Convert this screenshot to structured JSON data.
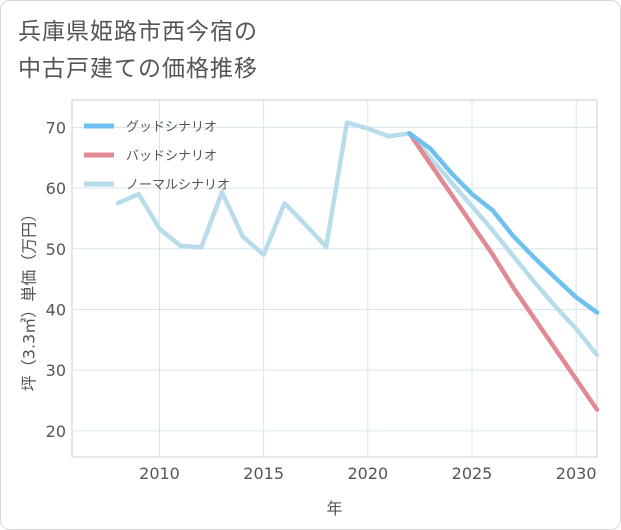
{
  "title": {
    "line1": "兵庫県姫路市西今宿の",
    "line2": "中古戸建ての価格推移"
  },
  "chart_data": {
    "type": "line",
    "xlabel": "年",
    "ylabel": "坪（3.3㎡）単価（万円）",
    "xlim": [
      2005.8,
      2031
    ],
    "ylim": [
      15.7,
      74.5
    ],
    "x_ticks": [
      2010,
      2015,
      2020,
      2025,
      2030
    ],
    "y_ticks": [
      20,
      30,
      40,
      50,
      60,
      70
    ],
    "grid": true,
    "legend_position": "top-left",
    "series": [
      {
        "name": "グッドシナリオ",
        "color": "#6ec1f0",
        "points": [
          [
            2022,
            69.0
          ],
          [
            2023,
            66.5
          ],
          [
            2024,
            62.5
          ],
          [
            2025,
            59.0
          ],
          [
            2026,
            56.3
          ],
          [
            2027,
            52.0
          ],
          [
            2028,
            48.5
          ],
          [
            2029,
            45.2
          ],
          [
            2030,
            42.0
          ],
          [
            2031,
            39.5
          ]
        ]
      },
      {
        "name": "バッドシナリオ",
        "color": "#e08a94",
        "points": [
          [
            2022,
            69.0
          ],
          [
            2023,
            64.0
          ],
          [
            2024,
            59.0
          ],
          [
            2025,
            54.0
          ],
          [
            2026,
            49.0
          ],
          [
            2027,
            43.5
          ],
          [
            2028,
            38.5
          ],
          [
            2029,
            33.5
          ],
          [
            2030,
            28.5
          ],
          [
            2031,
            23.5
          ]
        ]
      },
      {
        "name": "ノーマルシナリオ",
        "color": "#b9dcea",
        "points": [
          [
            2008,
            57.5
          ],
          [
            2009,
            59.0
          ],
          [
            2010,
            53.3
          ],
          [
            2011,
            50.5
          ],
          [
            2012,
            50.2
          ],
          [
            2013,
            59.3
          ],
          [
            2014,
            52.0
          ],
          [
            2015,
            49.0
          ],
          [
            2016,
            57.5
          ],
          [
            2017,
            54.0
          ],
          [
            2018,
            50.3
          ],
          [
            2019,
            70.8
          ],
          [
            2020,
            69.8
          ],
          [
            2021,
            68.5
          ],
          [
            2022,
            69.0
          ],
          [
            2023,
            65.0
          ],
          [
            2024,
            61.0
          ],
          [
            2025,
            57.0
          ],
          [
            2026,
            53.0
          ],
          [
            2027,
            48.7
          ],
          [
            2028,
            44.5
          ],
          [
            2029,
            40.5
          ],
          [
            2030,
            36.8
          ],
          [
            2031,
            32.5
          ]
        ]
      }
    ]
  }
}
